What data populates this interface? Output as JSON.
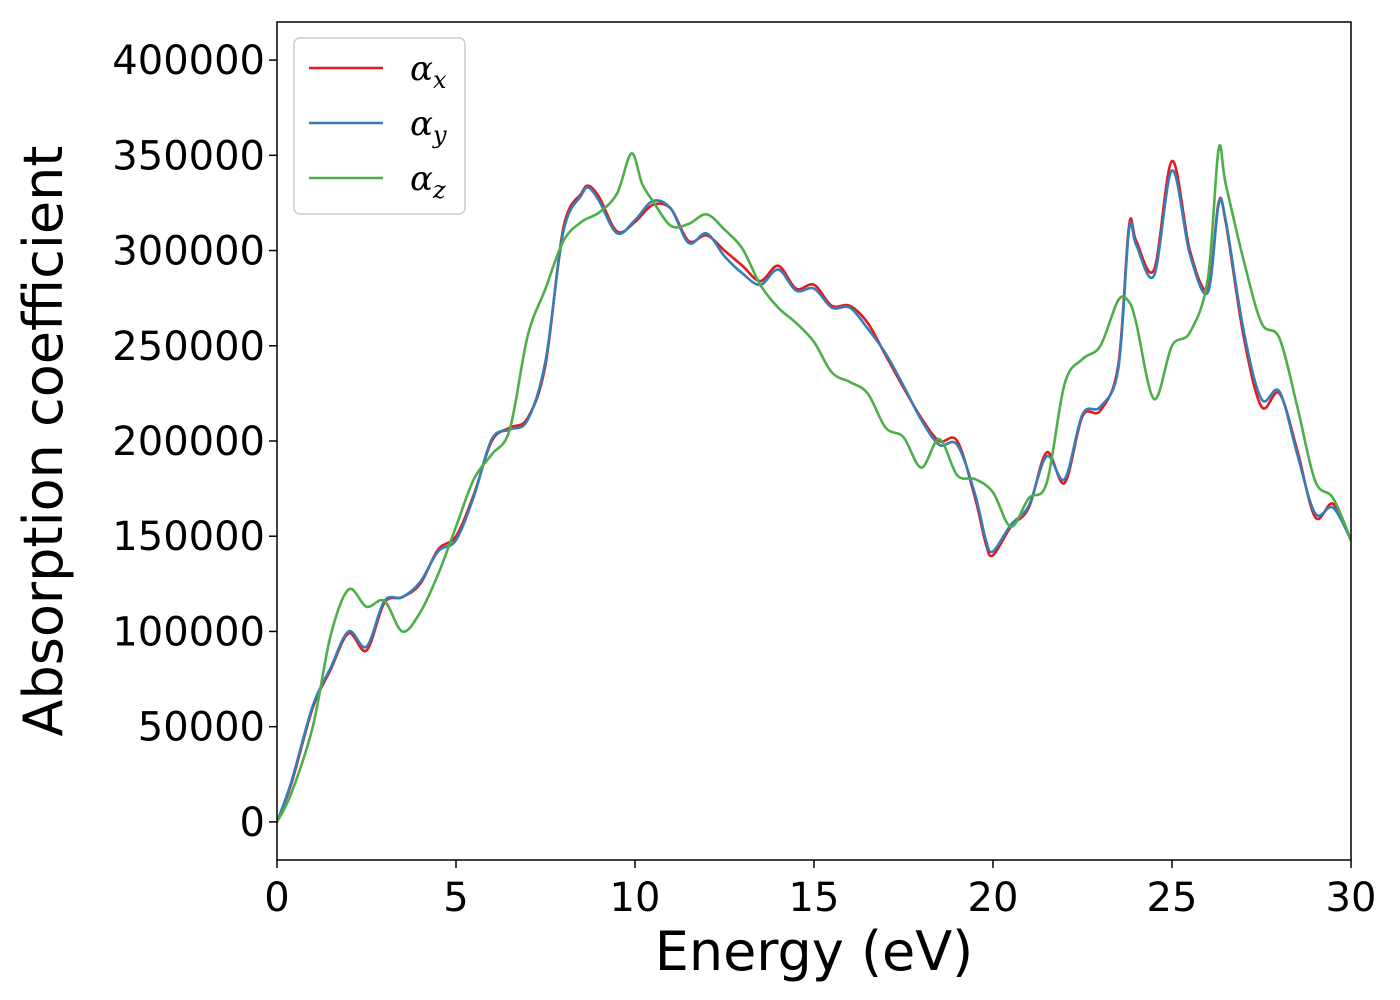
{
  "chart_data": {
    "type": "line",
    "title": "",
    "xlabel": "Energy (eV)",
    "ylabel": "Absorption coefficient",
    "xlim": [
      0,
      30
    ],
    "ylim": [
      -20000,
      420000
    ],
    "x_ticks": [
      0,
      5,
      10,
      15,
      20,
      25,
      30
    ],
    "y_ticks": [
      0,
      50000,
      100000,
      150000,
      200000,
      250000,
      300000,
      350000,
      400000
    ],
    "grid": false,
    "legend_position": "top-left",
    "series": [
      {
        "name": "α_x",
        "legend_symbol": "α",
        "legend_subscript": "x",
        "color": "#e41a1c",
        "x": [
          0,
          0.4,
          1,
          1.5,
          2,
          2.5,
          3,
          3.5,
          4,
          4.5,
          5,
          5.5,
          6,
          6.5,
          7,
          7.5,
          8,
          8.5,
          8.7,
          9,
          9.5,
          10,
          10.5,
          11,
          11.5,
          12,
          12.5,
          13,
          13.5,
          14,
          14.5,
          15,
          15.5,
          16,
          16.5,
          17,
          17.5,
          18,
          18.5,
          19,
          19.5,
          19.8,
          20,
          20.5,
          21,
          21.5,
          22,
          22.5,
          23,
          23.5,
          23.8,
          24,
          24.5,
          25,
          25.5,
          26,
          26.3,
          26.5,
          27,
          27.5,
          28,
          28.5,
          29,
          29.5,
          30
        ],
        "y": [
          0,
          20000,
          60000,
          80000,
          99000,
          90000,
          115000,
          118000,
          125000,
          143000,
          150000,
          172000,
          200000,
          207000,
          212000,
          240000,
          312000,
          330000,
          334000,
          328000,
          310000,
          315000,
          324000,
          322000,
          305000,
          308000,
          300000,
          292000,
          284000,
          292000,
          280000,
          282000,
          271000,
          271000,
          262000,
          245000,
          228000,
          212000,
          200000,
          200000,
          170000,
          146000,
          140000,
          155000,
          165000,
          194000,
          178000,
          213000,
          216000,
          240000,
          313000,
          305000,
          290000,
          347000,
          300000,
          280000,
          325000,
          315000,
          255000,
          218000,
          225000,
          195000,
          160000,
          167000,
          148000
        ]
      },
      {
        "name": "α_y",
        "legend_symbol": "α",
        "legend_subscript": "y",
        "color": "#377eb8",
        "x": [
          0,
          0.4,
          1,
          1.5,
          2,
          2.5,
          3,
          3.5,
          4,
          4.5,
          5,
          5.5,
          6,
          6.5,
          7,
          7.5,
          8,
          8.5,
          8.7,
          9,
          9.5,
          10,
          10.5,
          11,
          11.5,
          12,
          12.5,
          13,
          13.5,
          14,
          14.5,
          15,
          15.5,
          16,
          16.5,
          17,
          17.5,
          18,
          18.5,
          19,
          19.5,
          19.8,
          20,
          20.5,
          21,
          21.5,
          22,
          22.5,
          23,
          23.5,
          23.8,
          24,
          24.5,
          25,
          25.5,
          26,
          26.3,
          26.5,
          27,
          27.5,
          28,
          28.5,
          29,
          29.5,
          30
        ],
        "y": [
          0,
          21000,
          61000,
          81000,
          100000,
          92000,
          116000,
          118000,
          126000,
          142000,
          148000,
          171000,
          201000,
          206000,
          211000,
          242000,
          310000,
          329000,
          333000,
          326000,
          309000,
          316000,
          326000,
          322000,
          304000,
          309000,
          297000,
          288000,
          282000,
          290000,
          279000,
          280000,
          270000,
          270000,
          259000,
          246000,
          229000,
          211000,
          198000,
          198000,
          172000,
          148000,
          142000,
          156000,
          166000,
          192000,
          180000,
          214000,
          218000,
          238000,
          311000,
          303000,
          287000,
          342000,
          298000,
          278000,
          324000,
          316000,
          258000,
          222000,
          226000,
          193000,
          162000,
          165000,
          148000
        ]
      },
      {
        "name": "α_z",
        "legend_symbol": "α",
        "legend_subscript": "z",
        "color": "#4daf4a",
        "x": [
          0,
          0.4,
          1,
          1.5,
          2,
          2.5,
          3,
          3.5,
          4,
          4.5,
          5,
          5.5,
          6,
          6.5,
          7,
          7.5,
          8,
          8.5,
          9,
          9.5,
          9.9,
          10.2,
          10.5,
          11,
          11.5,
          12,
          12.5,
          13,
          13.5,
          14,
          14.5,
          15,
          15.5,
          16,
          16.5,
          17,
          17.5,
          18,
          18.5,
          19,
          19.5,
          20,
          20.5,
          21,
          21.5,
          22,
          22.5,
          23,
          23.5,
          23.8,
          24,
          24.5,
          25,
          25.5,
          26,
          26.3,
          26.5,
          27,
          27.5,
          28,
          28.5,
          29,
          29.5,
          30
        ],
        "y": [
          0,
          15000,
          50000,
          98000,
          122000,
          113000,
          116000,
          100000,
          110000,
          130000,
          155000,
          180000,
          193000,
          206000,
          255000,
          280000,
          305000,
          315000,
          320000,
          330000,
          351000,
          335000,
          326000,
          313000,
          314000,
          319000,
          311000,
          301000,
          282000,
          270000,
          262000,
          252000,
          236000,
          231000,
          225000,
          207000,
          202000,
          186000,
          201000,
          182000,
          180000,
          173000,
          155000,
          170000,
          178000,
          230000,
          243000,
          250000,
          274000,
          273000,
          262000,
          222000,
          250000,
          257000,
          285000,
          353000,
          335000,
          295000,
          262000,
          254000,
          218000,
          179000,
          170000,
          148000
        ]
      }
    ]
  }
}
